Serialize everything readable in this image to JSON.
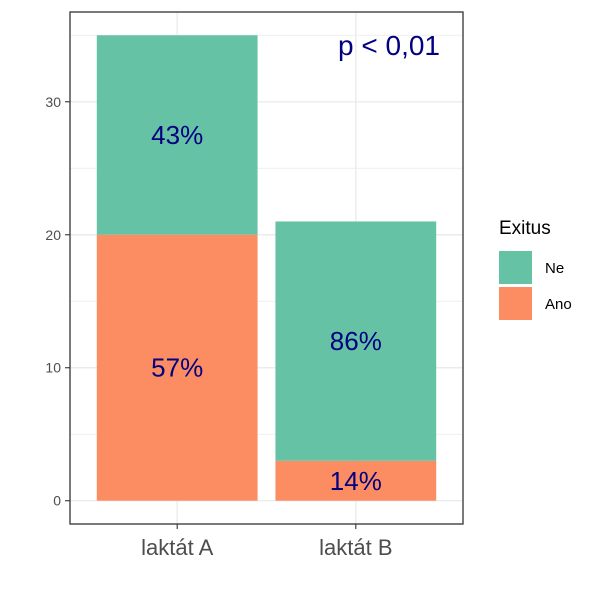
{
  "chart_data": {
    "type": "bar",
    "stacked": true,
    "categories": [
      "laktát A",
      "laktát B"
    ],
    "series": [
      {
        "name": "Ano",
        "values": [
          20,
          3
        ],
        "labels": [
          "57%",
          "14%"
        ]
      },
      {
        "name": "Ne",
        "values": [
          15,
          18
        ],
        "labels": [
          "43%",
          "86%"
        ]
      }
    ],
    "ylim": [
      -1.75,
      36.75
    ],
    "yticks": [
      0,
      10,
      20,
      30
    ],
    "grid": true,
    "legend": {
      "title": "Exitus",
      "placement": "right",
      "entries": [
        "Ne",
        "Ano"
      ]
    },
    "annotation": "p < 0,01",
    "title": "",
    "xlabel": "",
    "ylabel": ""
  },
  "colors": {
    "Ne": "#66c2a5",
    "Ano": "#fc8d62",
    "label_text": "#000080",
    "axis": "#333333",
    "grid": "#ebebeb"
  }
}
